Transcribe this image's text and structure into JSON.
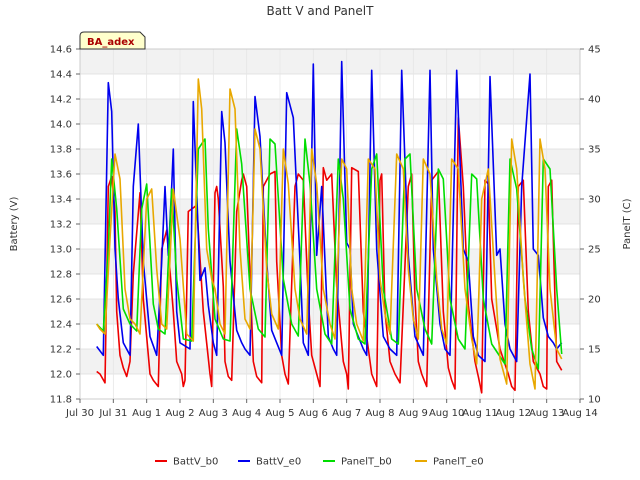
{
  "chart_data": {
    "type": "line",
    "title": "Batt V and PanelT",
    "site_label": "BA_adex",
    "ylabel": "Battery (V)",
    "y2label": "PanelT (C)",
    "xlabel": "",
    "ylim": [
      11.8,
      14.6
    ],
    "y2lim": [
      10,
      45
    ],
    "xlim": [
      0,
      15
    ],
    "x_ticks": [
      {
        "v": 0,
        "label": "Jul 30"
      },
      {
        "v": 1,
        "label": "Jul 31"
      },
      {
        "v": 2,
        "label": "Aug 1"
      },
      {
        "v": 3,
        "label": "Aug 2"
      },
      {
        "v": 4,
        "label": "Aug 3"
      },
      {
        "v": 5,
        "label": "Aug 4"
      },
      {
        "v": 6,
        "label": "Aug 5"
      },
      {
        "v": 7,
        "label": "Aug 6"
      },
      {
        "v": 8,
        "label": "Aug 7"
      },
      {
        "v": 9,
        "label": "Aug 8"
      },
      {
        "v": 10,
        "label": "Aug 9"
      },
      {
        "v": 11,
        "label": "Aug 10"
      },
      {
        "v": 12,
        "label": "Aug 11"
      },
      {
        "v": 13,
        "label": "Aug 12"
      },
      {
        "v": 14,
        "label": "Aug 13"
      },
      {
        "v": 15,
        "label": "Aug 14"
      }
    ],
    "y_ticks": [
      "11.8",
      "12.0",
      "12.2",
      "12.4",
      "12.6",
      "12.8",
      "13.0",
      "13.2",
      "13.4",
      "13.6",
      "13.8",
      "14.0",
      "14.2",
      "14.4",
      "14.6"
    ],
    "y2_ticks": [
      "10",
      "15",
      "20",
      "25",
      "30",
      "35",
      "40",
      "45"
    ],
    "grid": true,
    "legend_position": "bottom",
    "series": [
      {
        "name": "BattV_b0",
        "axis": "left",
        "color": "#ee0000",
        "x": [
          0.5,
          0.6,
          0.75,
          0.85,
          0.95,
          1.05,
          1.1,
          1.2,
          1.3,
          1.4,
          1.5,
          1.6,
          1.8,
          1.9,
          2.1,
          2.2,
          2.35,
          2.45,
          2.6,
          2.8,
          2.9,
          3.05,
          3.1,
          3.15,
          3.25,
          3.5,
          3.7,
          3.9,
          3.95,
          4.05,
          4.1,
          4.15,
          4.3,
          4.35,
          4.45,
          4.55,
          4.7,
          4.85,
          4.9,
          5.0,
          5.1,
          5.2,
          5.3,
          5.45,
          5.5,
          5.7,
          5.85,
          5.9,
          6.05,
          6.15,
          6.25,
          6.45,
          6.55,
          6.7,
          6.85,
          6.95,
          7.1,
          7.2,
          7.3,
          7.4,
          7.55,
          7.7,
          7.9,
          8.0,
          8.05,
          8.15,
          8.35,
          8.5,
          8.75,
          8.9,
          9.0,
          9.05,
          9.15,
          9.3,
          9.45,
          9.6,
          9.85,
          9.95,
          10.05,
          10.15,
          10.25,
          10.4,
          10.55,
          10.75,
          10.9,
          11.05,
          11.15,
          11.25,
          11.35,
          11.5,
          11.65,
          11.85,
          11.95,
          12.05,
          12.15,
          12.25,
          12.35,
          12.6,
          12.85,
          12.95,
          13.05,
          13.15,
          13.3,
          13.45,
          13.6,
          13.8,
          13.9,
          14.0,
          14.05,
          14.15,
          14.3,
          14.45
        ],
        "values": [
          12.02,
          12.0,
          11.93,
          13.5,
          13.58,
          13.3,
          12.5,
          12.15,
          12.05,
          11.98,
          12.1,
          12.8,
          13.45,
          12.6,
          12.0,
          11.95,
          11.9,
          13.0,
          13.15,
          12.5,
          12.1,
          12.0,
          11.9,
          11.95,
          13.3,
          13.35,
          12.5,
          12.0,
          11.9,
          13.45,
          13.5,
          13.4,
          12.7,
          12.1,
          11.98,
          11.95,
          13.3,
          13.55,
          13.6,
          13.5,
          12.8,
          12.1,
          11.98,
          11.93,
          13.5,
          13.6,
          13.62,
          12.9,
          12.15,
          12.0,
          11.92,
          13.5,
          13.6,
          13.55,
          12.6,
          12.15,
          12.0,
          11.9,
          13.65,
          13.55,
          13.6,
          12.7,
          12.1,
          12.0,
          11.88,
          13.65,
          13.62,
          12.5,
          12.0,
          11.9,
          13.55,
          13.6,
          12.5,
          12.1,
          12.0,
          11.93,
          13.5,
          13.6,
          12.6,
          12.1,
          12.0,
          11.9,
          13.55,
          13.62,
          12.5,
          12.05,
          11.95,
          11.88,
          14.05,
          13.5,
          12.55,
          12.1,
          11.98,
          11.85,
          13.55,
          13.52,
          12.6,
          12.2,
          12.0,
          11.9,
          11.87,
          13.5,
          13.55,
          12.5,
          12.1,
          12.0,
          11.9,
          11.88,
          13.5,
          13.55,
          12.1,
          12.03
        ],
        "ysmooth": false
      },
      {
        "name": "BattV_e0",
        "axis": "left",
        "color": "#0000ee",
        "x": [
          0.5,
          0.7,
          0.75,
          0.85,
          0.95,
          1.05,
          1.15,
          1.3,
          1.5,
          1.6,
          1.75,
          1.9,
          2.1,
          2.3,
          2.45,
          2.55,
          2.65,
          2.75,
          2.8,
          2.9,
          3.0,
          3.3,
          3.4,
          3.6,
          3.75,
          3.85,
          4.0,
          4.1,
          4.25,
          4.35,
          4.5,
          4.7,
          4.85,
          4.95,
          5.1,
          5.25,
          5.4,
          5.6,
          5.75,
          5.9,
          6.05,
          6.2,
          6.4,
          6.6,
          6.7,
          6.85,
          7.0,
          7.1,
          7.25,
          7.45,
          7.6,
          7.7,
          7.85,
          8.0,
          8.1,
          8.2,
          8.5,
          8.6,
          8.75,
          8.9,
          9.1,
          9.3,
          9.5,
          9.65,
          9.85,
          10.05,
          10.3,
          10.5,
          10.6,
          10.8,
          10.95,
          11.1,
          11.3,
          11.5,
          11.65,
          11.8,
          11.95,
          12.15,
          12.3,
          12.5,
          12.6,
          12.75,
          12.9,
          13.1,
          13.25,
          13.5,
          13.6,
          13.75,
          13.9,
          14.05,
          14.2,
          14.3,
          14.45
        ],
        "values": [
          12.22,
          12.15,
          12.9,
          14.33,
          14.1,
          13.0,
          12.6,
          12.25,
          12.15,
          13.5,
          14.0,
          12.9,
          12.3,
          12.15,
          12.9,
          13.5,
          12.95,
          13.5,
          13.8,
          12.5,
          12.25,
          12.2,
          14.18,
          12.75,
          12.85,
          12.55,
          12.25,
          12.15,
          14.1,
          13.85,
          12.9,
          12.35,
          12.25,
          12.2,
          12.15,
          14.22,
          13.9,
          12.9,
          12.35,
          12.25,
          12.15,
          14.25,
          14.05,
          12.9,
          12.25,
          12.15,
          14.48,
          12.95,
          13.5,
          12.3,
          12.2,
          12.15,
          14.5,
          13.05,
          13.0,
          12.4,
          12.2,
          12.15,
          14.43,
          13.0,
          12.3,
          12.2,
          12.15,
          14.43,
          12.95,
          12.3,
          12.15,
          14.43,
          13.0,
          12.4,
          12.2,
          12.15,
          14.43,
          13.0,
          12.9,
          12.3,
          12.15,
          12.1,
          14.38,
          12.95,
          13.0,
          12.4,
          12.2,
          12.1,
          13.5,
          14.4,
          13.0,
          12.95,
          12.45,
          12.3,
          12.25,
          12.2,
          12.25
        ],
        "ysmooth": false
      },
      {
        "name": "PanelT_b0",
        "axis": "right",
        "color": "#00dd00",
        "x": [
          0.5,
          0.7,
          0.85,
          0.95,
          1.1,
          1.3,
          1.5,
          1.7,
          1.85,
          2.0,
          2.2,
          2.35,
          2.55,
          2.75,
          2.9,
          3.1,
          3.35,
          3.55,
          3.75,
          3.85,
          4.05,
          4.3,
          4.5,
          4.7,
          4.85,
          5.1,
          5.35,
          5.55,
          5.7,
          5.85,
          6.1,
          6.35,
          6.55,
          6.75,
          6.9,
          7.1,
          7.35,
          7.55,
          7.75,
          7.9,
          8.1,
          8.35,
          8.55,
          8.75,
          8.9,
          9.1,
          9.35,
          9.55,
          9.75,
          9.9,
          10.1,
          10.35,
          10.55,
          10.75,
          10.9,
          11.1,
          11.35,
          11.55,
          11.75,
          11.9,
          12.1,
          12.35,
          12.55,
          12.75,
          12.9,
          13.1,
          13.35,
          13.55,
          13.75,
          13.9,
          14.1,
          14.3,
          14.45
        ],
        "values": [
          17.5,
          16.8,
          25.0,
          34.0,
          29.0,
          19.0,
          17.5,
          16.8,
          29.0,
          31.5,
          19.5,
          17.0,
          16.5,
          31.0,
          22.0,
          16.0,
          15.8,
          35.0,
          36.0,
          27.0,
          18.0,
          16.0,
          15.8,
          37.0,
          33.5,
          21.0,
          17.0,
          16.2,
          36.0,
          35.5,
          22.0,
          17.5,
          16.3,
          36.0,
          31.5,
          21.0,
          16.5,
          15.5,
          34.0,
          30.0,
          19.0,
          16.0,
          15.5,
          33.0,
          34.5,
          21.0,
          16.0,
          15.5,
          34.0,
          34.5,
          21.0,
          17.0,
          15.5,
          33.0,
          32.0,
          20.0,
          16.0,
          15.0,
          32.5,
          32.0,
          20.0,
          15.5,
          14.5,
          13.5,
          34.0,
          31.0,
          20.0,
          15.0,
          13.0,
          34.0,
          33.0,
          21.0,
          14.5
        ],
        "ysmooth": false
      },
      {
        "name": "PanelT_e0",
        "axis": "right",
        "color": "#e8a800",
        "x": [
          0.5,
          0.6,
          0.75,
          0.9,
          1.05,
          1.2,
          1.35,
          1.5,
          1.65,
          1.8,
          2.0,
          2.15,
          2.3,
          2.45,
          2.6,
          2.8,
          3.0,
          3.2,
          3.4,
          3.55,
          3.65,
          3.8,
          3.95,
          4.05,
          4.2,
          4.35,
          4.5,
          4.65,
          4.8,
          4.95,
          5.1,
          5.25,
          5.4,
          5.6,
          5.75,
          5.95,
          6.1,
          6.25,
          6.45,
          6.6,
          6.8,
          6.95,
          7.1,
          7.3,
          7.5,
          7.65,
          7.85,
          8.0,
          8.15,
          8.3,
          8.5,
          8.65,
          8.85,
          9.0,
          9.15,
          9.3,
          9.5,
          9.7,
          9.85,
          10.0,
          10.15,
          10.3,
          10.5,
          10.7,
          10.85,
          11.0,
          11.15,
          11.35,
          11.55,
          11.75,
          11.9,
          12.05,
          12.25,
          12.45,
          12.6,
          12.8,
          12.95,
          13.1,
          13.3,
          13.5,
          13.65,
          13.8,
          13.95,
          14.1,
          14.3,
          14.45
        ],
        "values": [
          17.5,
          17.0,
          16.5,
          26.0,
          34.5,
          32.0,
          21.0,
          18.0,
          17.5,
          16.5,
          30.0,
          31.0,
          23.0,
          17.5,
          17.0,
          31.0,
          26.0,
          16.5,
          15.8,
          42.0,
          39.0,
          25.0,
          22.0,
          21.0,
          17.5,
          16.5,
          41.0,
          39.0,
          25.0,
          18.0,
          17.0,
          37.0,
          35.0,
          23.0,
          18.5,
          17.0,
          35.0,
          31.5,
          21.0,
          18.0,
          16.5,
          35.0,
          31.5,
          21.0,
          17.5,
          16.0,
          34.0,
          33.0,
          21.0,
          17.5,
          15.8,
          34.0,
          33.0,
          22.0,
          18.5,
          16.5,
          34.5,
          33.0,
          23.0,
          18.0,
          16.0,
          34.0,
          32.5,
          22.0,
          17.0,
          15.5,
          34.0,
          33.0,
          21.0,
          16.0,
          13.5,
          30.0,
          33.0,
          22.0,
          14.0,
          11.5,
          36.0,
          33.0,
          22.0,
          13.5,
          11.0,
          36.0,
          33.0,
          21.0,
          15.0,
          14.0
        ],
        "ysmooth": false
      }
    ]
  }
}
